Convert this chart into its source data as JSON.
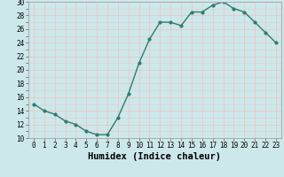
{
  "x": [
    0,
    1,
    2,
    3,
    4,
    5,
    6,
    7,
    8,
    9,
    10,
    11,
    12,
    13,
    14,
    15,
    16,
    17,
    18,
    19,
    20,
    21,
    22,
    23
  ],
  "y": [
    15,
    14,
    13.5,
    12.5,
    12,
    11,
    10.5,
    10.5,
    13,
    16.5,
    21,
    24.5,
    27,
    27,
    26.5,
    28.5,
    28.5,
    29.5,
    30,
    29,
    28.5,
    27,
    25.5,
    24
  ],
  "line_color": "#2e7d6e",
  "marker": "o",
  "marker_size": 2,
  "bg_color": "#cde8ea",
  "grid_color": "#e8c8c8",
  "xlabel": "Humidex (Indice chaleur)",
  "ylim": [
    10,
    30
  ],
  "xlim": [
    -0.5,
    23.5
  ],
  "yticks": [
    10,
    12,
    14,
    16,
    18,
    20,
    22,
    24,
    26,
    28,
    30
  ],
  "xticks": [
    0,
    1,
    2,
    3,
    4,
    5,
    6,
    7,
    8,
    9,
    10,
    11,
    12,
    13,
    14,
    15,
    16,
    17,
    18,
    19,
    20,
    21,
    22,
    23
  ],
  "tick_fontsize": 5.5,
  "xlabel_fontsize": 7.5,
  "line_width": 1.0
}
